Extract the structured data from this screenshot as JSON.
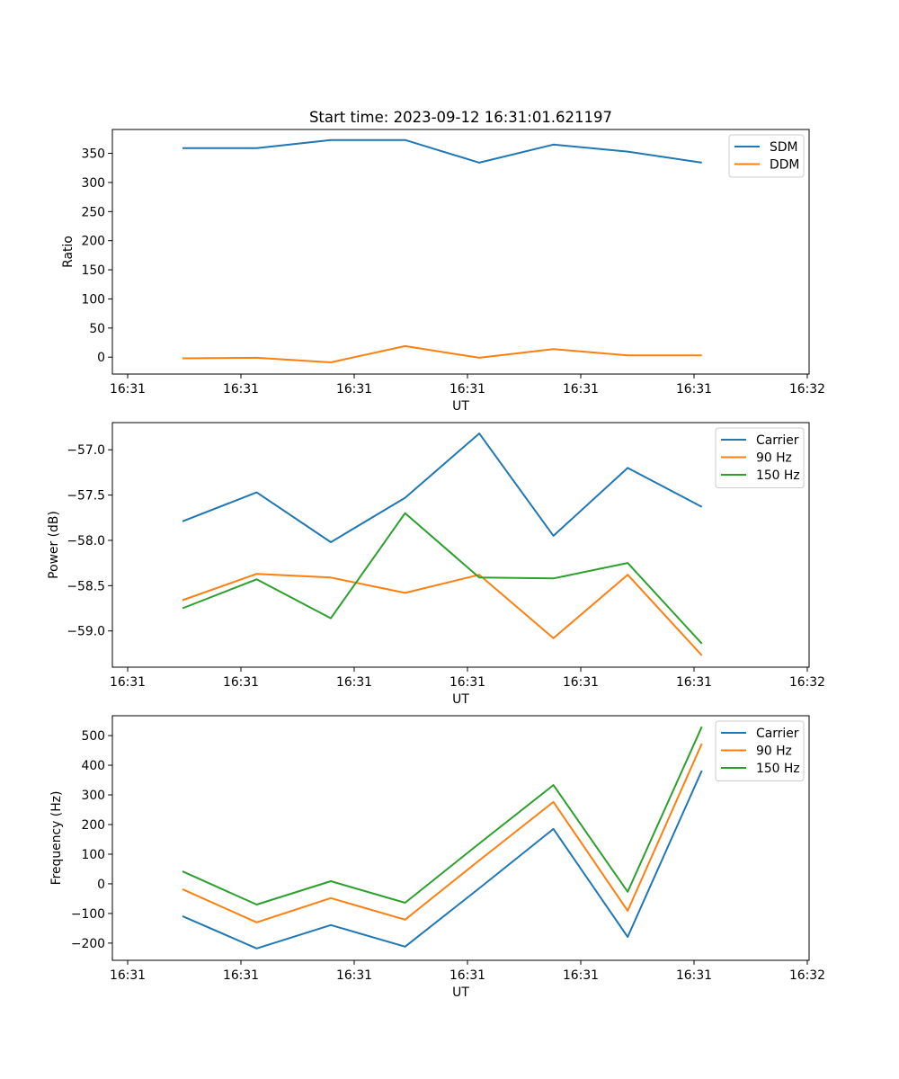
{
  "title": "Start time: 2023-09-12 16:31:01.621197",
  "colors": {
    "c0": "#1f77b4",
    "c1": "#ff7f0e",
    "c2": "#2ca02c"
  },
  "chart_data": [
    {
      "type": "line",
      "title": "Start time: 2023-09-12 16:31:01.621197",
      "xlabel": "UT",
      "ylabel": "Ratio",
      "xlim": [
        -1.35,
        60.16
      ],
      "xticks": [
        0,
        10,
        20,
        30,
        40,
        50,
        60
      ],
      "xticklabels": [
        "16:31",
        "16:31",
        "16:31",
        "16:31",
        "16:31",
        "16:31",
        "16:32"
      ],
      "ylim": [
        -29,
        391
      ],
      "yticks": [
        0,
        50,
        100,
        150,
        200,
        250,
        300,
        350
      ],
      "yticklabels": [
        "0",
        "50",
        "100",
        "150",
        "200",
        "250",
        "300",
        "350"
      ],
      "x": [
        4.84,
        11.39,
        17.94,
        24.49,
        31.04,
        37.59,
        44.14,
        50.69
      ],
      "legend": "top-right",
      "grid": false,
      "series": [
        {
          "name": "SDM",
          "color": "#1f77b4",
          "values": [
            359,
            359,
            373,
            373,
            334,
            365,
            353,
            334
          ]
        },
        {
          "name": "DDM",
          "color": "#ff7f0e",
          "values": [
            -2,
            -1,
            -9,
            19,
            -1,
            14,
            3,
            3
          ]
        }
      ]
    },
    {
      "type": "line",
      "xlabel": "UT",
      "ylabel": "Power (dB)",
      "xlim": [
        -1.35,
        60.16
      ],
      "xticks": [
        0,
        10,
        20,
        30,
        40,
        50,
        60
      ],
      "xticklabels": [
        "16:31",
        "16:31",
        "16:31",
        "16:31",
        "16:31",
        "16:31",
        "16:32"
      ],
      "ylim": [
        -59.4,
        -56.7
      ],
      "yticks": [
        -57.0,
        -57.5,
        -58.0,
        -58.5,
        -59.0
      ],
      "yticklabels": [
        "−57.0",
        "−57.5",
        "−58.0",
        "−58.5",
        "−59.0"
      ],
      "x": [
        4.84,
        11.39,
        17.94,
        24.49,
        31.04,
        37.59,
        44.14,
        50.69
      ],
      "legend": "top-right",
      "grid": false,
      "series": [
        {
          "name": "Carrier",
          "color": "#1f77b4",
          "values": [
            -57.79,
            -57.47,
            -58.02,
            -57.53,
            -56.82,
            -57.95,
            -57.2,
            -57.63
          ]
        },
        {
          "name": "90 Hz",
          "color": "#ff7f0e",
          "values": [
            -58.66,
            -58.37,
            -58.41,
            -58.58,
            -58.38,
            -59.08,
            -58.38,
            -59.27
          ]
        },
        {
          "name": "150 Hz",
          "color": "#2ca02c",
          "values": [
            -58.75,
            -58.43,
            -58.86,
            -57.7,
            -58.41,
            -58.42,
            -58.25,
            -59.14
          ]
        }
      ]
    },
    {
      "type": "line",
      "xlabel": "UT",
      "ylabel": "Frequency (Hz)",
      "xlim": [
        -1.35,
        60.16
      ],
      "xticks": [
        0,
        10,
        20,
        30,
        40,
        50,
        60
      ],
      "xticklabels": [
        "16:31",
        "16:31",
        "16:31",
        "16:31",
        "16:31",
        "16:31",
        "16:32"
      ],
      "ylim": [
        -258,
        567
      ],
      "yticks": [
        500,
        400,
        300,
        200,
        100,
        0,
        -100,
        -200
      ],
      "yticklabels": [
        "500",
        "400",
        "300",
        "200",
        "100",
        "0",
        "−100",
        "−200"
      ],
      "x": [
        4.84,
        11.39,
        17.94,
        24.49,
        31.04,
        37.59,
        44.14,
        50.69
      ],
      "legend": "top-right",
      "grid": false,
      "series": [
        {
          "name": "Carrier",
          "color": "#1f77b4",
          "values": [
            -109,
            -218,
            -139,
            -212,
            -15,
            185,
            -179,
            382
          ]
        },
        {
          "name": "90 Hz",
          "color": "#ff7f0e",
          "values": [
            -18,
            -130,
            -48,
            -121,
            79,
            276,
            -91,
            473
          ]
        },
        {
          "name": "150 Hz",
          "color": "#2ca02c",
          "values": [
            42,
            -70,
            9,
            -64,
            136,
            333,
            -27,
            530
          ]
        }
      ]
    }
  ]
}
